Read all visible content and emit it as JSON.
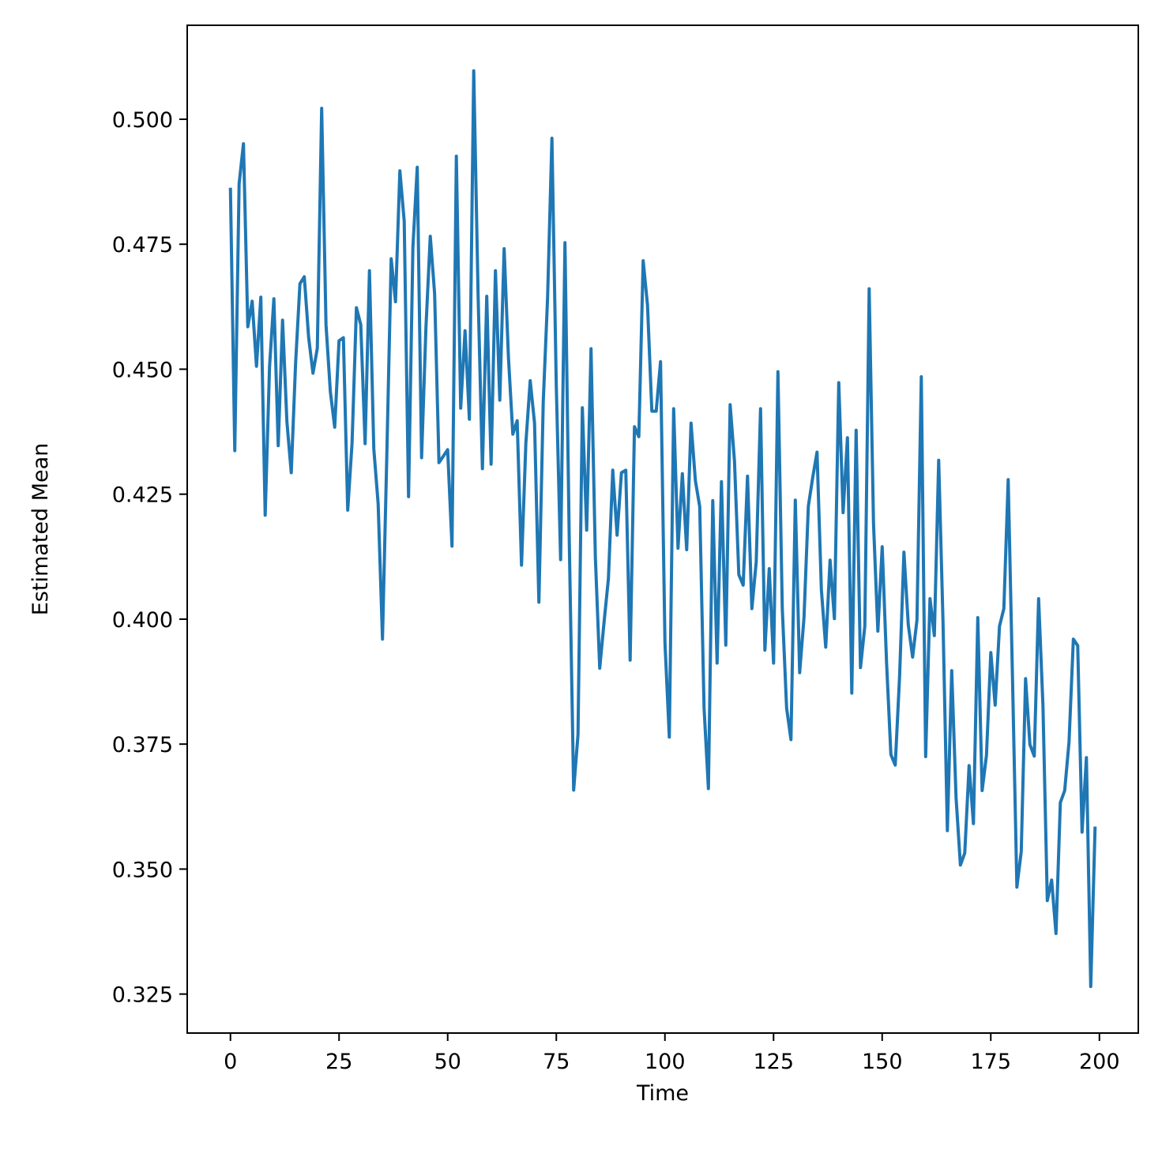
{
  "chart_data": {
    "type": "line",
    "title": "",
    "xlabel": "Time",
    "ylabel": "Estimated Mean",
    "xlim": [
      -9.95,
      208.95
    ],
    "ylim": [
      0.3172,
      0.5188
    ],
    "xticks": [
      0,
      25,
      50,
      75,
      100,
      125,
      150,
      175,
      200
    ],
    "xtick_labels": [
      "0",
      "25",
      "50",
      "75",
      "100",
      "125",
      "150",
      "175",
      "200"
    ],
    "yticks": [
      0.325,
      0.35,
      0.375,
      0.4,
      0.425,
      0.45,
      0.475,
      0.5
    ],
    "ytick_labels": [
      "0.325",
      "0.350",
      "0.375",
      "0.400",
      "0.425",
      "0.450",
      "0.475",
      "0.500"
    ],
    "grid": false,
    "legend": "none",
    "series": [
      {
        "color": "#1f77b4",
        "x": [
          0,
          1,
          2,
          3,
          4,
          5,
          6,
          7,
          8,
          9,
          10,
          11,
          12,
          13,
          14,
          15,
          16,
          17,
          18,
          19,
          20,
          21,
          22,
          23,
          24,
          25,
          26,
          27,
          28,
          29,
          30,
          31,
          32,
          33,
          34,
          35,
          36,
          37,
          38,
          39,
          40,
          41,
          42,
          43,
          44,
          45,
          46,
          47,
          48,
          49,
          50,
          51,
          52,
          53,
          54,
          55,
          56,
          57,
          58,
          59,
          60,
          61,
          62,
          63,
          64,
          65,
          66,
          67,
          68,
          69,
          70,
          71,
          72,
          73,
          74,
          75,
          76,
          77,
          78,
          79,
          80,
          81,
          82,
          83,
          84,
          85,
          86,
          87,
          88,
          89,
          90,
          91,
          92,
          93,
          94,
          95,
          96,
          97,
          98,
          99,
          100,
          101,
          102,
          103,
          104,
          105,
          106,
          107,
          108,
          109,
          110,
          111,
          112,
          113,
          114,
          115,
          116,
          117,
          118,
          119,
          120,
          121,
          122,
          123,
          124,
          125,
          126,
          127,
          128,
          129,
          130,
          131,
          132,
          133,
          134,
          135,
          136,
          137,
          138,
          139,
          140,
          141,
          142,
          143,
          144,
          145,
          146,
          147,
          148,
          149,
          150,
          151,
          152,
          153,
          154,
          155,
          156,
          157,
          158,
          159,
          160,
          161,
          162,
          163,
          164,
          165,
          166,
          167,
          168,
          169,
          170,
          171,
          172,
          173,
          174,
          175,
          176,
          177,
          178,
          179,
          180,
          181,
          182,
          183,
          184,
          185,
          186,
          187,
          188,
          189,
          190,
          191,
          192,
          193,
          194,
          195,
          196,
          197,
          198,
          199
        ],
        "y": [
          0.4863,
          0.4337,
          0.4871,
          0.4951,
          0.4585,
          0.4636,
          0.4506,
          0.4644,
          0.4208,
          0.4504,
          0.4641,
          0.4347,
          0.4598,
          0.4395,
          0.4293,
          0.4512,
          0.4671,
          0.4685,
          0.4564,
          0.4492,
          0.4542,
          0.5022,
          0.4589,
          0.4455,
          0.4384,
          0.4557,
          0.4563,
          0.4218,
          0.4353,
          0.4623,
          0.4589,
          0.4351,
          0.4697,
          0.4341,
          0.4231,
          0.396,
          0.4329,
          0.4721,
          0.4635,
          0.4897,
          0.4796,
          0.4245,
          0.4744,
          0.4904,
          0.4323,
          0.4583,
          0.4766,
          0.4651,
          0.4313,
          0.4326,
          0.4339,
          0.4146,
          0.4926,
          0.4422,
          0.4577,
          0.44,
          0.5097,
          0.4651,
          0.4301,
          0.4646,
          0.431,
          0.4697,
          0.4438,
          0.4741,
          0.4522,
          0.437,
          0.4397,
          0.4108,
          0.4352,
          0.4477,
          0.4392,
          0.4034,
          0.4434,
          0.4643,
          0.4962,
          0.4468,
          0.4119,
          0.4753,
          0.4152,
          0.3658,
          0.3769,
          0.4423,
          0.4178,
          0.4541,
          0.4123,
          0.3902,
          0.3994,
          0.4081,
          0.4298,
          0.4168,
          0.4293,
          0.4298,
          0.3918,
          0.4385,
          0.4365,
          0.4717,
          0.4628,
          0.4416,
          0.4416,
          0.4515,
          0.3952,
          0.3764,
          0.4421,
          0.4142,
          0.4291,
          0.4139,
          0.4392,
          0.4277,
          0.4225,
          0.3822,
          0.3661,
          0.4237,
          0.3912,
          0.4275,
          0.3948,
          0.4429,
          0.4316,
          0.4089,
          0.4068,
          0.4286,
          0.4021,
          0.4114,
          0.4421,
          0.3938,
          0.4101,
          0.3912,
          0.4495,
          0.4022,
          0.3822,
          0.3759,
          0.4238,
          0.3893,
          0.4003,
          0.4226,
          0.4283,
          0.4334,
          0.4059,
          0.3944,
          0.4118,
          0.4001,
          0.4473,
          0.4213,
          0.4363,
          0.3852,
          0.4378,
          0.3903,
          0.3986,
          0.4661,
          0.4191,
          0.3976,
          0.4145,
          0.3914,
          0.3729,
          0.3708,
          0.3885,
          0.4134,
          0.3989,
          0.3924,
          0.3998,
          0.4485,
          0.3725,
          0.4041,
          0.3967,
          0.4318,
          0.3993,
          0.3577,
          0.3897,
          0.3643,
          0.3508,
          0.3532,
          0.3707,
          0.3591,
          0.4003,
          0.3657,
          0.3728,
          0.3933,
          0.3828,
          0.3986,
          0.4021,
          0.4279,
          0.3878,
          0.3464,
          0.3535,
          0.3881,
          0.3749,
          0.3726,
          0.4041,
          0.3827,
          0.3437,
          0.3478,
          0.3371,
          0.3633,
          0.3657,
          0.3754,
          0.396,
          0.3947,
          0.3574,
          0.3723,
          0.3265,
          0.3585
        ]
      }
    ]
  }
}
